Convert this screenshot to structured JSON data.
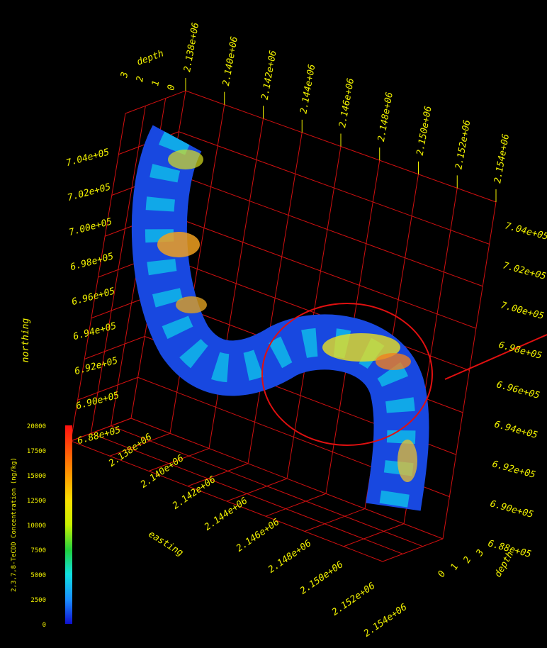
{
  "scene": {
    "top_depth": {
      "label": "depth",
      "ticks": [
        "0",
        "1",
        "2",
        "3"
      ]
    },
    "top_easting_ticks": [
      "2.138e+06",
      "2.140e+06",
      "2.142e+06",
      "2.144e+06",
      "2.146e+06",
      "2.148e+06",
      "2.150e+06",
      "2.152e+06",
      "2.154e+06"
    ],
    "northing": {
      "label": "northing",
      "ticks": [
        "7.04e+05",
        "7.02e+05",
        "7.00e+05",
        "6.98e+05",
        "6.96e+05",
        "6.94e+05",
        "6.92e+05",
        "6.90e+05",
        "6.88e+05"
      ]
    },
    "right_northing_ticks": [
      "7.04e+05",
      "7.02e+05",
      "7.00e+05",
      "6.98e+05",
      "6.96e+05",
      "6.94e+05",
      "6.92e+05",
      "6.90e+05",
      "6.88e+05"
    ],
    "easting": {
      "label": "easting",
      "ticks": [
        "2.138e+06",
        "2.140e+06",
        "2.142e+06",
        "2.144e+06",
        "2.146e+06",
        "2.148e+06",
        "2.150e+06",
        "2.152e+06",
        "2.154e+06"
      ]
    },
    "bottom_depth": {
      "label": "depth",
      "ticks": [
        "0",
        "1",
        "2",
        "3"
      ]
    },
    "colorbar": {
      "title": "2,3,7,8-TeCDD Concentration (ng/kg)",
      "ticks": [
        "20000",
        "17500",
        "15000",
        "12500",
        "10000",
        "7500",
        "5000",
        "2500",
        "0"
      ]
    }
  }
}
